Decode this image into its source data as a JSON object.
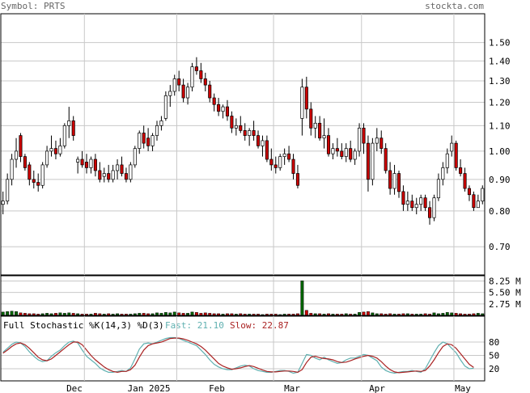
{
  "header": {
    "symbol_label": "Symbol: PRTS",
    "site": "stockta.com"
  },
  "colors": {
    "background": "#ffffff",
    "grid": "#c8c8c8",
    "frame": "#000000",
    "up_candle": "#ffffff",
    "down_candle": "#cc0000",
    "volume_bar": "#006600",
    "volume_bar_down": "#cc0000",
    "fast_line": "#5fb0b0",
    "slow_line": "#aa2222",
    "header_text": "#666666"
  },
  "chart_data": [
    {
      "type": "candlestick",
      "panel": "price",
      "y_scale": "log",
      "ylim": [
        0.63,
        1.67
      ],
      "yticks": [
        "1.50",
        "1.40",
        "1.30",
        "1.20",
        "1.10",
        "1.00",
        "0.90",
        "0.80",
        "0.70"
      ],
      "x_tick_labels": [
        "Dec",
        "Jan 2025",
        "Feb",
        "Mar",
        "Apr",
        "May"
      ],
      "ohlc": [
        [
          0.82,
          0.86,
          0.79,
          0.83
        ],
        [
          0.83,
          0.92,
          0.82,
          0.9
        ],
        [
          0.9,
          0.99,
          0.88,
          0.97
        ],
        [
          0.97,
          1.05,
          0.94,
          1.0
        ],
        [
          1.06,
          1.07,
          0.96,
          0.98
        ],
        [
          0.98,
          0.99,
          0.93,
          0.94
        ],
        [
          0.95,
          0.96,
          0.88,
          0.9
        ],
        [
          0.9,
          0.93,
          0.87,
          0.89
        ],
        [
          0.89,
          0.92,
          0.86,
          0.88
        ],
        [
          0.88,
          0.96,
          0.87,
          0.95
        ],
        [
          0.95,
          1.02,
          0.94,
          1.0
        ],
        [
          1.0,
          1.06,
          0.98,
          1.01
        ],
        [
          1.01,
          1.04,
          0.97,
          0.99
        ],
        [
          0.99,
          1.05,
          0.98,
          1.02
        ],
        [
          1.02,
          1.11,
          1.01,
          1.1
        ],
        [
          1.1,
          1.18,
          1.05,
          1.12
        ],
        [
          1.12,
          1.14,
          1.04,
          1.06
        ],
        [
          0.96,
          0.98,
          0.92,
          0.97
        ],
        [
          0.97,
          1.0,
          0.94,
          0.95
        ],
        [
          0.96,
          0.99,
          0.92,
          0.94
        ],
        [
          0.94,
          0.98,
          0.92,
          0.97
        ],
        [
          0.97,
          0.99,
          0.91,
          0.93
        ],
        [
          0.93,
          0.96,
          0.89,
          0.9
        ],
        [
          0.91,
          0.94,
          0.89,
          0.92
        ],
        [
          0.92,
          0.95,
          0.89,
          0.9
        ],
        [
          0.9,
          0.95,
          0.89,
          0.93
        ],
        [
          0.93,
          0.97,
          0.9,
          0.95
        ],
        [
          0.95,
          0.98,
          0.91,
          0.92
        ],
        [
          0.92,
          0.94,
          0.89,
          0.9
        ],
        [
          0.9,
          0.96,
          0.89,
          0.95
        ],
        [
          0.95,
          1.02,
          0.94,
          1.01
        ],
        [
          1.01,
          1.08,
          0.99,
          1.07
        ],
        [
          1.07,
          1.1,
          1.01,
          1.03
        ],
        [
          1.05,
          1.09,
          1.0,
          1.02
        ],
        [
          1.02,
          1.07,
          1.0,
          1.06
        ],
        [
          1.06,
          1.12,
          1.04,
          1.1
        ],
        [
          1.1,
          1.14,
          1.08,
          1.12
        ],
        [
          1.13,
          1.25,
          1.12,
          1.23
        ],
        [
          1.23,
          1.28,
          1.18,
          1.25
        ],
        [
          1.25,
          1.33,
          1.23,
          1.31
        ],
        [
          1.31,
          1.35,
          1.25,
          1.28
        ],
        [
          1.28,
          1.31,
          1.2,
          1.22
        ],
        [
          1.22,
          1.29,
          1.19,
          1.27
        ],
        [
          1.27,
          1.39,
          1.25,
          1.37
        ],
        [
          1.37,
          1.42,
          1.33,
          1.35
        ],
        [
          1.35,
          1.39,
          1.29,
          1.31
        ],
        [
          1.31,
          1.34,
          1.25,
          1.28
        ],
        [
          1.28,
          1.3,
          1.2,
          1.22
        ],
        [
          1.22,
          1.24,
          1.16,
          1.19
        ],
        [
          1.19,
          1.22,
          1.14,
          1.16
        ],
        [
          1.16,
          1.19,
          1.13,
          1.18
        ],
        [
          1.18,
          1.21,
          1.12,
          1.14
        ],
        [
          1.14,
          1.16,
          1.07,
          1.09
        ],
        [
          1.09,
          1.13,
          1.06,
          1.1
        ],
        [
          1.1,
          1.14,
          1.07,
          1.08
        ],
        [
          1.08,
          1.11,
          1.04,
          1.06
        ],
        [
          1.06,
          1.09,
          1.02,
          1.08
        ],
        [
          1.08,
          1.12,
          1.04,
          1.06
        ],
        [
          1.06,
          1.08,
          1.01,
          1.02
        ],
        [
          1.02,
          1.06,
          0.98,
          1.04
        ],
        [
          1.04,
          1.06,
          0.96,
          0.97
        ],
        [
          0.97,
          1.01,
          0.93,
          0.95
        ],
        [
          0.95,
          0.98,
          0.92,
          0.94
        ],
        [
          0.94,
          0.99,
          0.93,
          0.98
        ],
        [
          0.98,
          1.01,
          0.95,
          0.99
        ],
        [
          0.99,
          1.02,
          0.96,
          0.97
        ],
        [
          0.97,
          0.99,
          0.9,
          0.92
        ],
        [
          0.92,
          0.95,
          0.87,
          0.88
        ],
        [
          1.13,
          1.31,
          1.06,
          1.27
        ],
        [
          1.27,
          1.32,
          1.13,
          1.17
        ],
        [
          1.17,
          1.2,
          1.06,
          1.09
        ],
        [
          1.09,
          1.14,
          1.05,
          1.11
        ],
        [
          1.11,
          1.14,
          1.04,
          1.05
        ],
        [
          1.05,
          1.13,
          1.01,
          1.06
        ],
        [
          1.06,
          1.09,
          0.98,
          0.99
        ],
        [
          0.99,
          1.03,
          0.97,
          1.01
        ],
        [
          1.01,
          1.05,
          0.98,
          1.0
        ],
        [
          1.0,
          1.03,
          0.97,
          0.98
        ],
        [
          0.98,
          1.03,
          0.96,
          1.01
        ],
        [
          1.01,
          1.04,
          0.96,
          0.97
        ],
        [
          0.97,
          1.01,
          0.95,
          1.0
        ],
        [
          1.0,
          1.11,
          0.98,
          1.09
        ],
        [
          1.09,
          1.11,
          0.99,
          1.03
        ],
        [
          1.03,
          1.06,
          0.86,
          0.9
        ],
        [
          0.9,
          1.05,
          0.88,
          1.03
        ],
        [
          1.03,
          1.09,
          1.0,
          1.05
        ],
        [
          1.05,
          1.08,
          0.99,
          1.01
        ],
        [
          1.01,
          1.03,
          0.92,
          0.93
        ],
        [
          0.93,
          0.96,
          0.85,
          0.87
        ],
        [
          0.87,
          0.95,
          0.85,
          0.92
        ],
        [
          0.92,
          0.93,
          0.84,
          0.86
        ],
        [
          0.86,
          0.88,
          0.8,
          0.82
        ],
        [
          0.82,
          0.86,
          0.8,
          0.83
        ],
        [
          0.83,
          0.85,
          0.8,
          0.81
        ],
        [
          0.81,
          0.84,
          0.79,
          0.82
        ],
        [
          0.82,
          0.85,
          0.8,
          0.84
        ],
        [
          0.84,
          0.85,
          0.8,
          0.81
        ],
        [
          0.81,
          0.83,
          0.76,
          0.78
        ],
        [
          0.78,
          0.85,
          0.77,
          0.84
        ],
        [
          0.84,
          0.92,
          0.83,
          0.9
        ],
        [
          0.9,
          0.96,
          0.88,
          0.94
        ],
        [
          0.94,
          1.01,
          0.92,
          0.99
        ],
        [
          1.0,
          1.06,
          0.98,
          1.03
        ],
        [
          1.03,
          1.04,
          0.93,
          0.94
        ],
        [
          0.94,
          0.97,
          0.91,
          0.92
        ],
        [
          0.92,
          0.94,
          0.86,
          0.87
        ],
        [
          0.87,
          0.88,
          0.83,
          0.85
        ],
        [
          0.85,
          0.86,
          0.8,
          0.81
        ],
        [
          0.81,
          0.85,
          0.81,
          0.83
        ],
        [
          0.83,
          0.88,
          0.82,
          0.87
        ]
      ]
    },
    {
      "type": "bar",
      "panel": "volume",
      "unit": "M",
      "ylim": [
        0,
        9.5
      ],
      "yticks": [
        "8.25 M",
        "5.50 M",
        "2.75 M"
      ],
      "values": [
        0.8,
        0.9,
        1.0,
        0.9,
        0.6,
        0.5,
        0.4,
        0.4,
        0.3,
        0.4,
        0.5,
        0.4,
        0.5,
        0.6,
        0.5,
        0.6,
        0.5,
        0.4,
        0.3,
        0.3,
        0.3,
        0.5,
        0.4,
        0.3,
        0.4,
        0.3,
        0.4,
        0.3,
        0.3,
        0.3,
        0.4,
        0.5,
        0.5,
        0.4,
        0.4,
        0.6,
        0.5,
        0.7,
        0.6,
        0.8,
        0.6,
        0.5,
        0.5,
        0.8,
        0.7,
        0.5,
        0.6,
        0.5,
        0.4,
        0.4,
        0.3,
        0.4,
        0.4,
        0.3,
        0.4,
        0.3,
        0.3,
        0.3,
        0.3,
        0.2,
        0.3,
        0.3,
        0.3,
        0.2,
        0.3,
        0.3,
        0.3,
        0.4,
        8.3,
        1.2,
        0.5,
        0.4,
        0.4,
        0.3,
        0.4,
        0.3,
        0.3,
        0.3,
        0.4,
        0.3,
        0.3,
        0.7,
        0.8,
        0.9,
        0.6,
        0.4,
        0.4,
        0.3,
        0.4,
        0.3,
        0.3,
        0.4,
        0.4,
        0.3,
        0.3,
        0.3,
        0.4,
        0.3,
        0.6,
        0.4,
        0.5,
        0.7,
        0.6,
        0.5,
        0.4,
        0.3,
        0.3,
        0.4,
        0.5,
        0.4
      ]
    },
    {
      "type": "line",
      "panel": "stochastic",
      "title": "Full Stochastic %K(14,3) %D(3)",
      "fast_label": "Fast: 21.10",
      "slow_label": "Slow: 22.87",
      "ylim": [
        0,
        100
      ],
      "yticks": [
        "80",
        "50",
        "20"
      ],
      "series": [
        {
          "name": "Fast",
          "values": [
            57,
            66,
            75,
            80,
            78,
            70,
            58,
            48,
            40,
            36,
            38,
            48,
            56,
            62,
            72,
            80,
            82,
            78,
            62,
            48,
            40,
            32,
            22,
            16,
            12,
            12,
            14,
            16,
            14,
            22,
            42,
            64,
            76,
            78,
            76,
            80,
            84,
            88,
            90,
            90,
            88,
            84,
            80,
            76,
            72,
            62,
            52,
            40,
            30,
            24,
            20,
            18,
            18,
            22,
            26,
            28,
            26,
            20,
            16,
            14,
            12,
            12,
            14,
            16,
            16,
            14,
            10,
            12,
            32,
            52,
            50,
            44,
            40,
            46,
            40,
            36,
            32,
            34,
            40,
            44,
            44,
            48,
            52,
            50,
            44,
            38,
            24,
            16,
            12,
            10,
            12,
            14,
            14,
            16,
            14,
            12,
            20,
            38,
            56,
            72,
            80,
            76,
            66,
            56,
            40,
            26,
            20,
            21
          ]
        },
        {
          "name": "Slow",
          "values": [
            55,
            62,
            70,
            76,
            78,
            74,
            66,
            56,
            46,
            40,
            38,
            42,
            50,
            58,
            66,
            74,
            80,
            80,
            74,
            62,
            50,
            40,
            32,
            24,
            18,
            14,
            12,
            14,
            14,
            18,
            28,
            46,
            62,
            72,
            76,
            78,
            80,
            84,
            88,
            89,
            89,
            87,
            84,
            80,
            76,
            70,
            62,
            52,
            42,
            32,
            26,
            22,
            19,
            20,
            22,
            25,
            27,
            25,
            21,
            17,
            14,
            13,
            13,
            14,
            15,
            15,
            14,
            12,
            18,
            34,
            46,
            48,
            45,
            43,
            42,
            40,
            36,
            34,
            35,
            38,
            42,
            45,
            48,
            50,
            48,
            44,
            36,
            26,
            18,
            13,
            11,
            12,
            13,
            14,
            15,
            14,
            16,
            26,
            40,
            56,
            70,
            76,
            74,
            66,
            54,
            42,
            30,
            23
          ]
        }
      ]
    }
  ]
}
